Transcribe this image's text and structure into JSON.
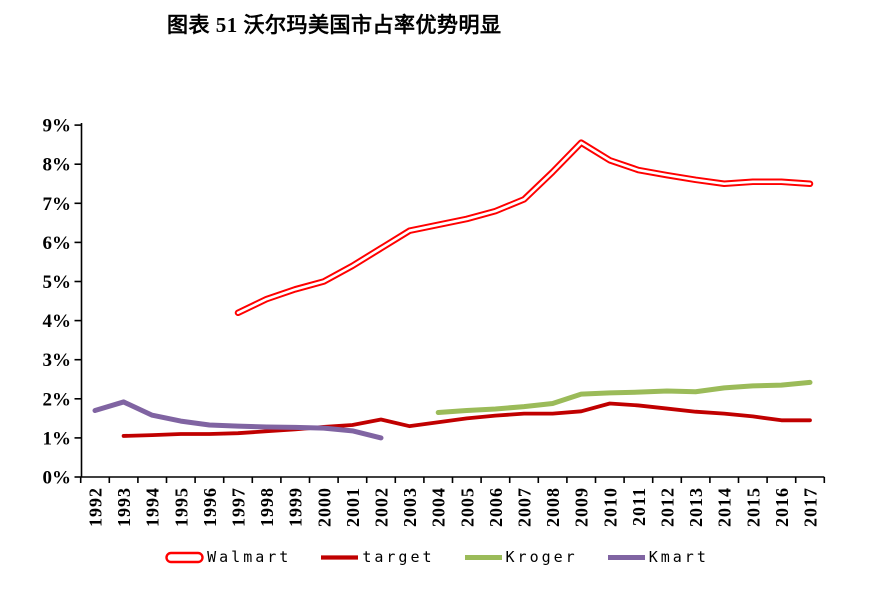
{
  "title": "图表 51 沃尔玛美国市占率优势明显",
  "chart_data": {
    "type": "line",
    "title": "图表 51 沃尔玛美国市占率优势明显",
    "xlabel": "",
    "ylabel": "",
    "y_unit": "%",
    "ylim": [
      0,
      9
    ],
    "grid": false,
    "legend_position": "bottom",
    "y_ticks": [
      "0%",
      "1%",
      "2%",
      "3%",
      "4%",
      "5%",
      "6%",
      "7%",
      "8%",
      "9%"
    ],
    "x": [
      1992,
      1993,
      1994,
      1995,
      1996,
      1997,
      1998,
      1999,
      2000,
      2001,
      2002,
      2003,
      2004,
      2005,
      2006,
      2007,
      2008,
      2009,
      2010,
      2011,
      2012,
      2013,
      2014,
      2015,
      2016,
      2017
    ],
    "series": [
      {
        "name": "Walmart",
        "color": "#FF0000",
        "style": "double",
        "line_width": 6.5,
        "values": [
          null,
          null,
          null,
          null,
          null,
          4.2,
          4.55,
          4.8,
          5.0,
          5.4,
          5.85,
          6.3,
          6.45,
          6.6,
          6.8,
          7.1,
          7.8,
          8.55,
          8.1,
          7.85,
          7.72,
          7.6,
          7.5,
          7.55,
          7.55,
          7.5
        ]
      },
      {
        "name": "target",
        "color": "#C00000",
        "style": "solid",
        "line_width": 3.8,
        "values": [
          null,
          1.05,
          1.07,
          1.1,
          1.1,
          1.12,
          1.17,
          1.22,
          1.28,
          1.33,
          1.47,
          1.3,
          1.4,
          1.5,
          1.57,
          1.62,
          1.62,
          1.68,
          1.88,
          1.83,
          1.75,
          1.67,
          1.62,
          1.55,
          1.45,
          1.45
        ]
      },
      {
        "name": "Kroger",
        "color": "#9BBB59",
        "style": "solid",
        "line_width": 5,
        "values": [
          null,
          null,
          null,
          null,
          null,
          null,
          null,
          null,
          null,
          null,
          null,
          null,
          1.65,
          1.7,
          1.74,
          1.8,
          1.88,
          2.12,
          2.15,
          2.17,
          2.2,
          2.18,
          2.28,
          2.33,
          2.35,
          2.42
        ]
      },
      {
        "name": "Kmart",
        "color": "#8064A2",
        "style": "solid",
        "line_width": 5,
        "values": [
          1.7,
          1.92,
          1.58,
          1.43,
          1.33,
          1.3,
          1.28,
          1.27,
          1.25,
          1.18,
          1.0,
          null,
          null,
          null,
          null,
          null,
          null,
          null,
          null,
          null,
          null,
          null,
          null,
          null,
          null,
          null
        ]
      }
    ]
  }
}
